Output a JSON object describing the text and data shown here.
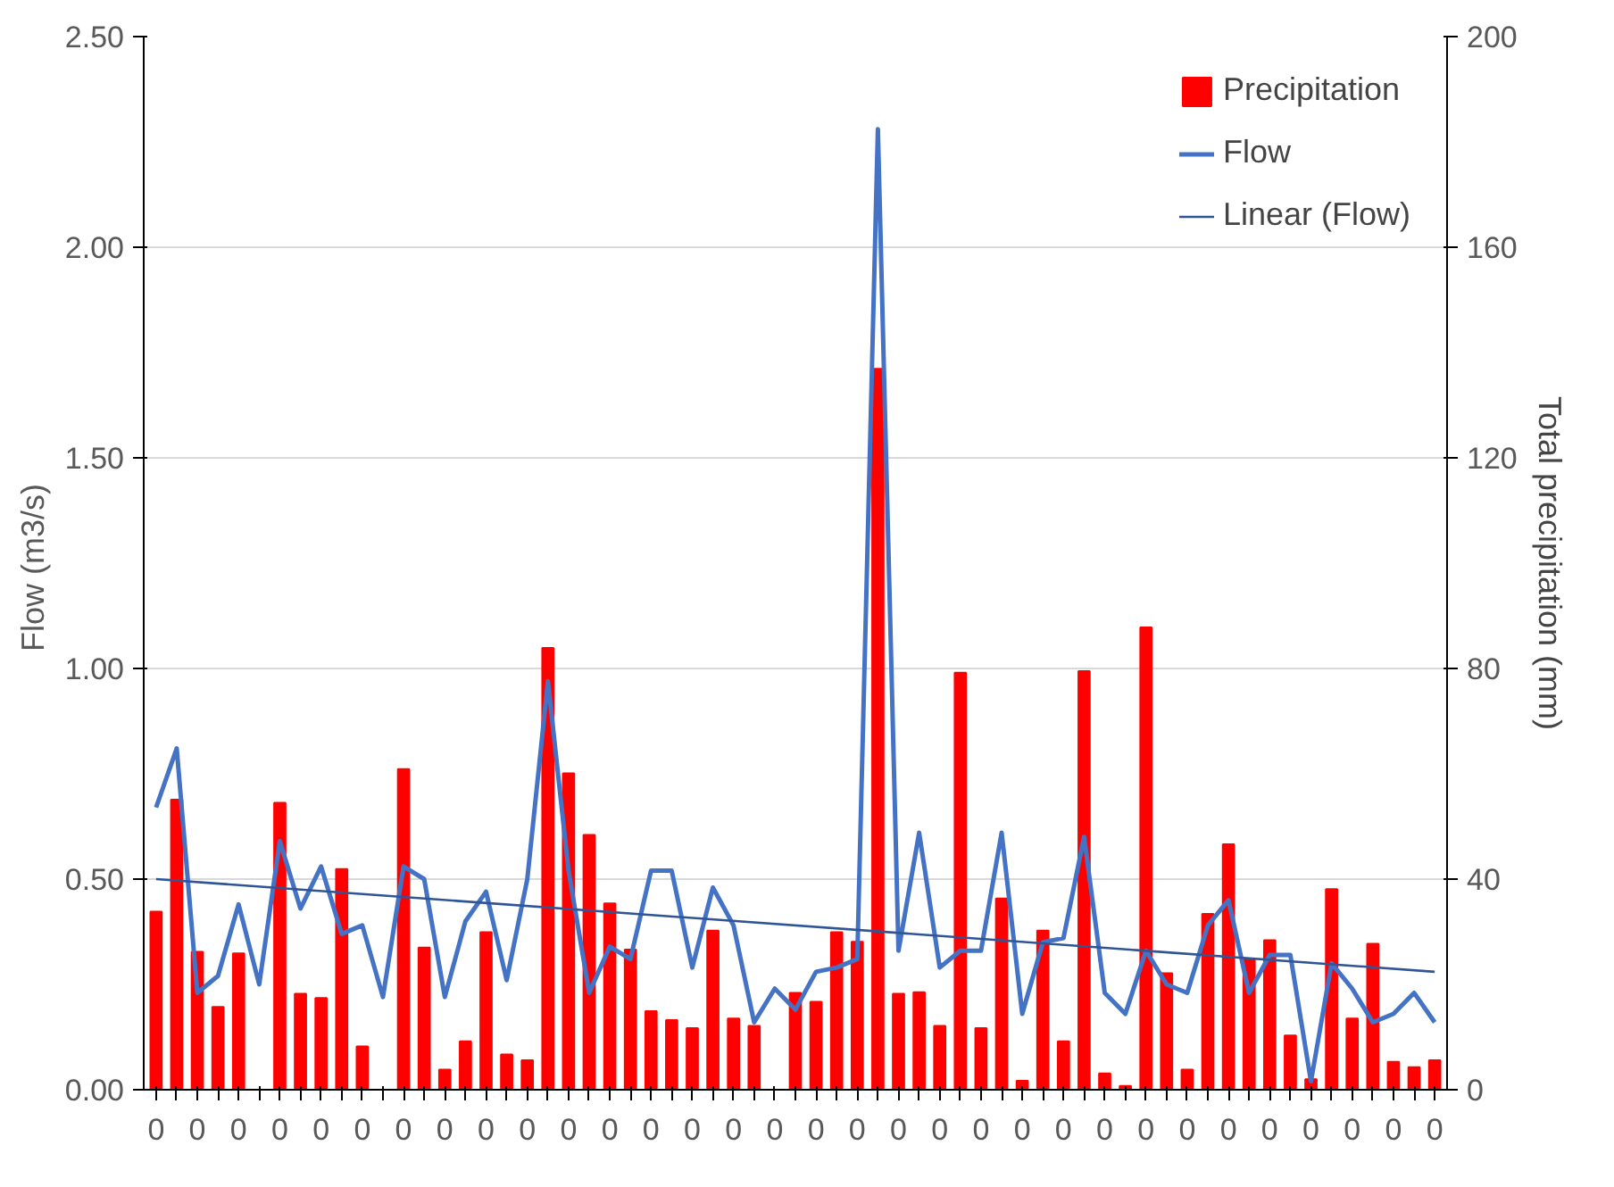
{
  "chart_data": {
    "type": "bar",
    "ylabel": "Flow  (m3/s)",
    "y2label": "Total precipitation (mm)",
    "categories": [
      "0",
      null,
      "0",
      null,
      "0",
      null,
      "0",
      null,
      "0",
      null,
      "0",
      null,
      "0",
      null,
      "0",
      null,
      "0",
      null,
      "0",
      null,
      "0",
      null,
      "0",
      null,
      "0",
      null,
      "0",
      null,
      "0",
      null,
      "0",
      null,
      "0",
      null,
      "0",
      null,
      "0",
      null,
      "0",
      null,
      "0",
      null,
      "0",
      null,
      "0",
      null,
      "0",
      null,
      "0",
      null,
      "0",
      null,
      "0",
      null,
      "0",
      null,
      "0",
      null,
      "0",
      null,
      "0",
      null,
      "0"
    ],
    "series": [
      {
        "name": "Precipitation",
        "axis": "y2",
        "color": "#ff0000",
        "values": [
          33.8,
          55.1,
          26.2,
          15.7,
          25.9,
          0,
          54.5,
          18.2,
          17.4,
          41.9,
          8.2,
          0,
          60.9,
          27.0,
          3.8,
          9.2,
          29.9,
          6.7,
          5.6,
          83.9,
          60.1,
          48.4,
          35.4,
          26.6,
          14.9,
          13.2,
          11.7,
          30.2,
          13.5,
          12.1,
          0,
          18.4,
          16.7,
          29.9,
          28.1,
          136.9,
          18.2,
          18.5,
          12.1,
          79.2,
          11.7,
          36.3,
          1.7,
          30.2,
          9.2,
          79.5,
          3.1,
          0.7,
          87.8,
          22.1,
          3.8,
          33.4,
          46.6,
          24.8,
          28.4,
          10.3,
          2.0,
          38.1,
          13.5,
          27.7,
          5.3,
          4.3,
          5.6
        ]
      },
      {
        "name": "Flow",
        "type": "line",
        "color": "#4472c4",
        "values": [
          0.67,
          0.81,
          0.23,
          0.27,
          0.44,
          0.25,
          0.59,
          0.43,
          0.53,
          0.37,
          0.39,
          0.22,
          0.53,
          0.5,
          0.22,
          0.4,
          0.47,
          0.26,
          0.5,
          0.97,
          0.52,
          0.23,
          0.34,
          0.31,
          0.52,
          0.52,
          0.29,
          0.48,
          0.39,
          0.16,
          0.24,
          0.19,
          0.28,
          0.29,
          0.31,
          2.28,
          0.33,
          0.61,
          0.29,
          0.33,
          0.33,
          0.61,
          0.18,
          0.35,
          0.36,
          0.6,
          0.23,
          0.18,
          0.33,
          0.25,
          0.23,
          0.39,
          0.45,
          0.23,
          0.32,
          0.32,
          0.02,
          0.3,
          0.24,
          0.16,
          0.18,
          0.23,
          0.16
        ]
      },
      {
        "name": "Linear (Flow)",
        "type": "line",
        "color": "#2f5597",
        "values": [
          0.5,
          null,
          null,
          null,
          null,
          null,
          null,
          null,
          null,
          null,
          null,
          null,
          null,
          null,
          null,
          null,
          null,
          null,
          null,
          null,
          null,
          null,
          null,
          null,
          null,
          null,
          null,
          null,
          null,
          null,
          null,
          null,
          null,
          null,
          null,
          null,
          null,
          null,
          null,
          null,
          null,
          null,
          null,
          null,
          null,
          null,
          null,
          null,
          null,
          null,
          null,
          null,
          null,
          null,
          null,
          null,
          null,
          null,
          null,
          null,
          null,
          null,
          0.28
        ]
      }
    ],
    "ylim": [
      0,
      2.5
    ],
    "yticks": [
      {
        "value": 0,
        "label": "0.00"
      },
      {
        "value": 0.5,
        "label": "0.50"
      },
      {
        "value": 1,
        "label": "1.00"
      },
      {
        "value": 1.5,
        "label": "1.50"
      },
      {
        "value": 2,
        "label": "2.00"
      },
      {
        "value": 2.5,
        "label": "2.50"
      }
    ],
    "y2lim": [
      0,
      200
    ],
    "y2ticks": [
      0,
      40,
      80,
      120,
      160,
      200
    ],
    "grid": "y",
    "legend": "top right"
  }
}
